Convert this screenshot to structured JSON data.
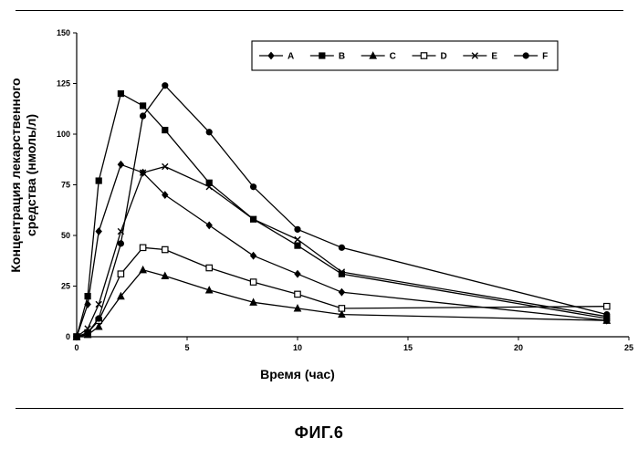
{
  "figure_label": "ФИГ.6",
  "chart_data": {
    "type": "line",
    "xlabel": "Время (час)",
    "ylabel_lines": [
      "Концентрация лекарственного",
      "средства (нмоль/л)"
    ],
    "xlim": [
      0,
      25
    ],
    "ylim": [
      0,
      150
    ],
    "x_ticks": [
      0,
      5,
      10,
      15,
      20,
      25
    ],
    "y_ticks": [
      0,
      25,
      50,
      75,
      100,
      125,
      150
    ],
    "legend_position": "top-right",
    "series_color": "#000000",
    "series": [
      {
        "name": "A",
        "marker": "diamond",
        "points": [
          [
            0,
            0
          ],
          [
            0.5,
            16
          ],
          [
            1,
            52
          ],
          [
            2,
            85
          ],
          [
            3,
            81
          ],
          [
            4,
            70
          ],
          [
            6,
            55
          ],
          [
            8,
            40
          ],
          [
            10,
            31
          ],
          [
            12,
            22
          ],
          [
            24,
            8
          ]
        ]
      },
      {
        "name": "B",
        "marker": "square",
        "points": [
          [
            0,
            0
          ],
          [
            0.5,
            20
          ],
          [
            1,
            77
          ],
          [
            2,
            120
          ],
          [
            3,
            114
          ],
          [
            4,
            102
          ],
          [
            6,
            76
          ],
          [
            8,
            58
          ],
          [
            10,
            45
          ],
          [
            12,
            31
          ],
          [
            24,
            9
          ]
        ]
      },
      {
        "name": "C",
        "marker": "triangle",
        "points": [
          [
            0,
            0
          ],
          [
            0.5,
            1
          ],
          [
            1,
            5
          ],
          [
            2,
            20
          ],
          [
            3,
            33
          ],
          [
            4,
            30
          ],
          [
            6,
            23
          ],
          [
            8,
            17
          ],
          [
            10,
            14
          ],
          [
            12,
            11
          ],
          [
            24,
            8
          ]
        ]
      },
      {
        "name": "D",
        "marker": "open-square",
        "points": [
          [
            0,
            0
          ],
          [
            0.5,
            2
          ],
          [
            1,
            8
          ],
          [
            2,
            31
          ],
          [
            3,
            44
          ],
          [
            4,
            43
          ],
          [
            6,
            34
          ],
          [
            8,
            27
          ],
          [
            10,
            21
          ],
          [
            12,
            14
          ],
          [
            24,
            15
          ]
        ]
      },
      {
        "name": "E",
        "marker": "x",
        "points": [
          [
            0,
            0
          ],
          [
            0.5,
            4
          ],
          [
            1,
            16
          ],
          [
            2,
            52
          ],
          [
            3,
            81
          ],
          [
            4,
            84
          ],
          [
            6,
            74
          ],
          [
            8,
            58
          ],
          [
            10,
            48
          ],
          [
            12,
            32
          ],
          [
            24,
            10
          ]
        ]
      },
      {
        "name": "F",
        "marker": "circle",
        "points": [
          [
            0,
            0
          ],
          [
            0.5,
            2
          ],
          [
            1,
            9
          ],
          [
            2,
            46
          ],
          [
            3,
            109
          ],
          [
            4,
            124
          ],
          [
            6,
            101
          ],
          [
            8,
            74
          ],
          [
            10,
            53
          ],
          [
            12,
            44
          ],
          [
            24,
            11
          ]
        ]
      }
    ]
  }
}
